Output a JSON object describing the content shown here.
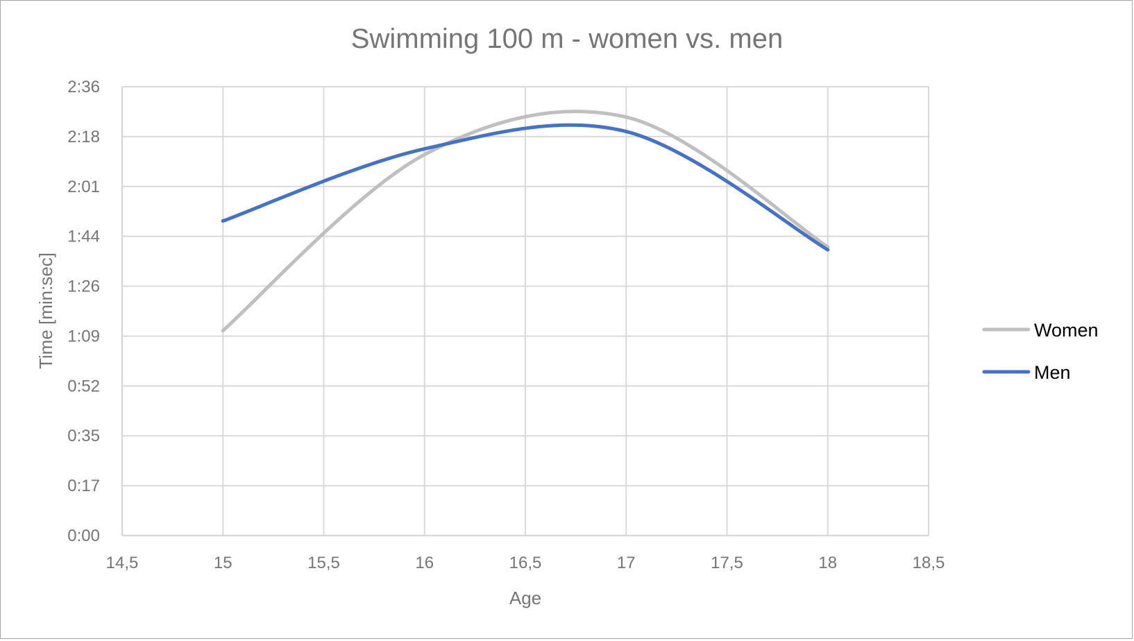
{
  "chart_data": {
    "type": "line",
    "smoothed": true,
    "title": "Swimming 100 m - women vs. men",
    "xlabel": "Age",
    "ylabel": "Time [min:sec]",
    "xlim": [
      14.5,
      18.5
    ],
    "ylim_seconds": [
      0,
      155.52
    ],
    "x_ticks": [
      14.5,
      15,
      15.5,
      16,
      16.5,
      17,
      17.5,
      18,
      18.5
    ],
    "x_tick_labels": [
      "14,5",
      "15",
      "15,5",
      "16",
      "16,5",
      "17",
      "17,5",
      "18",
      "18,5"
    ],
    "y_ticks_seconds": [
      0,
      17.28,
      34.56,
      51.84,
      69.12,
      86.4,
      103.68,
      120.96,
      138.24,
      155.52
    ],
    "y_tick_labels": [
      "0:00",
      "0:17",
      "0:35",
      "0:52",
      "1:09",
      "1:26",
      "1:44",
      "2:01",
      "2:18",
      "2:36"
    ],
    "grid": true,
    "legend_position": "right",
    "series": [
      {
        "name": "Women",
        "color": "#bfbfbf",
        "x": [
          15,
          16,
          17,
          18
        ],
        "y_seconds": [
          71,
          132,
          145,
          100
        ],
        "y_labels": [
          "1:11",
          "2:12",
          "2:25",
          "1:40"
        ]
      },
      {
        "name": "Men",
        "color": "#4472c4",
        "x": [
          15,
          16,
          17,
          18
        ],
        "y_seconds": [
          109,
          134,
          140,
          99
        ],
        "y_labels": [
          "1:49",
          "2:14",
          "2:20",
          "1:39"
        ]
      }
    ],
    "colors": {
      "text": "#757575",
      "grid": "#d9d9d9",
      "border": "#a6a6a6",
      "legend_text": "#000000"
    }
  }
}
